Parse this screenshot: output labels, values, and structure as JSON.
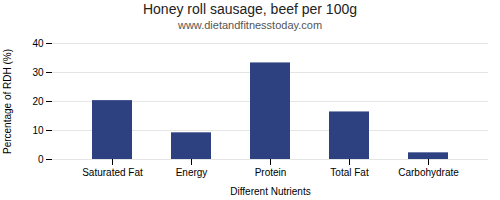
{
  "chart_data": {
    "type": "bar",
    "title": "Honey roll sausage, beef per 100g",
    "subtitle": "www.dietandfitnesstoday.com",
    "xlabel": "Different Nutrients",
    "ylabel": "Percentage of RDH (%)",
    "categories": [
      "Saturated Fat",
      "Energy",
      "Protein",
      "Total Fat",
      "Carbohydrate"
    ],
    "values": [
      20.3,
      9.2,
      33.3,
      16.4,
      2.3
    ],
    "color": "#2d4080",
    "ylim": [
      0,
      40
    ],
    "yticks": [
      0,
      10,
      20,
      30,
      40
    ],
    "grid": true
  }
}
